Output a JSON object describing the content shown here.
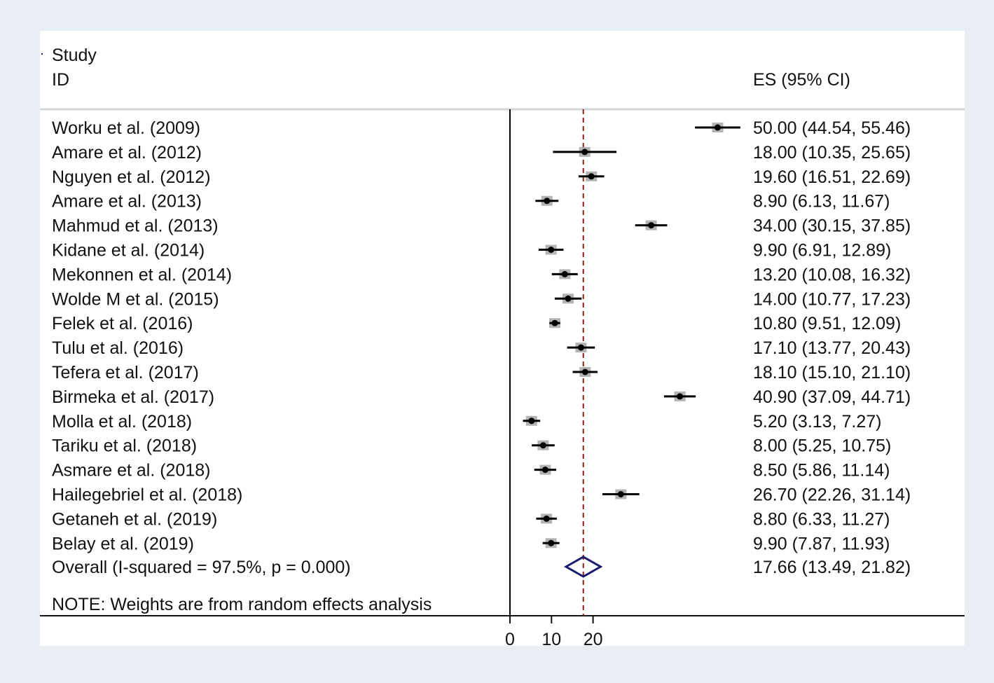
{
  "chart_data": {
    "type": "forest",
    "header": {
      "study": "Study",
      "id": "ID",
      "es": "ES (95% CI)"
    },
    "studies": [
      {
        "label": "Worku et al. (2009)",
        "es": 50.0,
        "lo": 44.54,
        "hi": 55.46,
        "text": "50.00 (44.54, 55.46)"
      },
      {
        "label": "Amare et al. (2012)",
        "es": 18.0,
        "lo": 10.35,
        "hi": 25.65,
        "text": "18.00 (10.35, 25.65)"
      },
      {
        "label": "Nguyen et al. (2012)",
        "es": 19.6,
        "lo": 16.51,
        "hi": 22.69,
        "text": "19.60 (16.51, 22.69)"
      },
      {
        "label": "Amare et al. (2013)",
        "es": 8.9,
        "lo": 6.13,
        "hi": 11.67,
        "text": "8.90 (6.13, 11.67)"
      },
      {
        "label": "Mahmud et al. (2013)",
        "es": 34.0,
        "lo": 30.15,
        "hi": 37.85,
        "text": "34.00 (30.15, 37.85)"
      },
      {
        "label": "Kidane et al. (2014)",
        "es": 9.9,
        "lo": 6.91,
        "hi": 12.89,
        "text": "9.90 (6.91, 12.89)"
      },
      {
        "label": "Mekonnen et al. (2014)",
        "es": 13.2,
        "lo": 10.08,
        "hi": 16.32,
        "text": "13.20 (10.08, 16.32)"
      },
      {
        "label": "Wolde M et al. (2015)",
        "es": 14.0,
        "lo": 10.77,
        "hi": 17.23,
        "text": "14.00 (10.77, 17.23)"
      },
      {
        "label": "Felek et al. (2016)",
        "es": 10.8,
        "lo": 9.51,
        "hi": 12.09,
        "text": "10.80 (9.51, 12.09)"
      },
      {
        "label": "Tulu et al. (2016)",
        "es": 17.1,
        "lo": 13.77,
        "hi": 20.43,
        "text": "17.10 (13.77, 20.43)"
      },
      {
        "label": "Tefera et al. (2017)",
        "es": 18.1,
        "lo": 15.1,
        "hi": 21.1,
        "text": "18.10 (15.10, 21.10)"
      },
      {
        "label": "Birmeka et al. (2017)",
        "es": 40.9,
        "lo": 37.09,
        "hi": 44.71,
        "text": "40.90 (37.09, 44.71)"
      },
      {
        "label": "Molla et al. (2018)",
        "es": 5.2,
        "lo": 3.13,
        "hi": 7.27,
        "text": "5.20 (3.13, 7.27)"
      },
      {
        "label": "Tariku et al. (2018)",
        "es": 8.0,
        "lo": 5.25,
        "hi": 10.75,
        "text": "8.00 (5.25, 10.75)"
      },
      {
        "label": "Asmare et al. (2018)",
        "es": 8.5,
        "lo": 5.86,
        "hi": 11.14,
        "text": "8.50 (5.86, 11.14)"
      },
      {
        "label": "Hailegebriel et al. (2018)",
        "es": 26.7,
        "lo": 22.26,
        "hi": 31.14,
        "text": "26.70 (22.26, 31.14)"
      },
      {
        "label": "Getaneh et al. (2019)",
        "es": 8.8,
        "lo": 6.33,
        "hi": 11.27,
        "text": "8.80 (6.33, 11.27)"
      },
      {
        "label": "Belay et al. (2019)",
        "es": 9.9,
        "lo": 7.87,
        "hi": 11.93,
        "text": "9.90 (7.87, 11.93)"
      }
    ],
    "overall": {
      "label": "Overall  (I-squared = 97.5%, p = 0.000)",
      "es": 17.66,
      "lo": 13.49,
      "hi": 21.82,
      "text": "17.66 (13.49, 21.82)"
    },
    "note": "NOTE: Weights are from random effects analysis",
    "x_ticks": [
      0,
      10,
      20
    ],
    "x_tick_labels": [
      "0",
      "10",
      "20"
    ],
    "reference_line": 17.66,
    "colors": {
      "background": "#e8eef3",
      "panel": "#ffffff",
      "ci_line": "#000000",
      "point": "#000000",
      "weight_box": "#b3b3b3",
      "overall_diamond": "#1a1a6e",
      "reference_line": "#8b1c1c"
    }
  }
}
